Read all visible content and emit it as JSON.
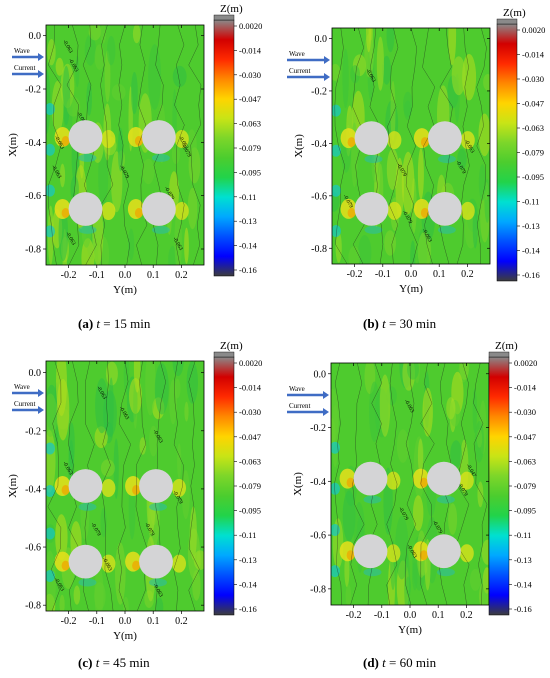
{
  "chart_data": [
    {
      "type": "heatmap",
      "panel": "a",
      "caption": {
        "label": "(a)",
        "var": "t",
        "eq": "= 15 min"
      },
      "xlabel": "Y(m)",
      "ylabel": "X(m)",
      "xlim": [
        -0.28,
        0.28
      ],
      "ylim": [
        -0.86,
        0.04
      ],
      "xticks": [
        "-0.2",
        "-0.1",
        "0.0",
        "0.1",
        "0.2"
      ],
      "yticks": [
        "0.0",
        "-0.2",
        "-0.4",
        "-0.6",
        "-0.8"
      ],
      "arrows": [
        "Wave",
        "Current"
      ],
      "piles": [
        {
          "y": -0.14,
          "x": -0.38
        },
        {
          "y": 0.12,
          "x": -0.38
        },
        {
          "y": -0.14,
          "x": -0.65
        },
        {
          "y": 0.12,
          "x": -0.65
        }
      ],
      "pile_radius": 0.06,
      "contour_labels": [
        {
          "text": "-0.063",
          "y": -0.22,
          "x": -0.02
        },
        {
          "text": "-0.063",
          "y": -0.2,
          "x": -0.09
        },
        {
          "text": "-0.063",
          "y": -0.17,
          "x": -0.29
        },
        {
          "text": "-0.063",
          "y": -0.25,
          "x": -0.38
        },
        {
          "text": "-0.063",
          "y": 0.19,
          "x": -0.38
        },
        {
          "text": "-0.079",
          "y": -0.02,
          "x": -0.49
        },
        {
          "text": "-0.079",
          "y": 0.2,
          "x": -0.41
        },
        {
          "text": "-0.063",
          "y": -0.26,
          "x": -0.49
        },
        {
          "text": "-0.079",
          "y": 0.14,
          "x": -0.57
        },
        {
          "text": "-0.063",
          "y": -0.21,
          "x": -0.74
        },
        {
          "text": "-0.063",
          "y": 0.17,
          "x": -0.76
        }
      ],
      "colorbar": {
        "title": "Z(m)",
        "ticks": [
          "0.0020",
          "-0.014",
          "-0.030",
          "-0.047",
          "-0.063",
          "-0.079",
          "-0.095",
          "-0.11",
          "-0.13",
          "-0.14",
          "-0.16"
        ]
      }
    },
    {
      "type": "heatmap",
      "panel": "b",
      "caption": {
        "label": "(b)",
        "var": "t",
        "eq": "= 30 min"
      },
      "xlabel": "Y(m)",
      "ylabel": "X(m)",
      "xlim": [
        -0.28,
        0.28
      ],
      "ylim": [
        -0.86,
        0.04
      ],
      "xticks": [
        "-0.2",
        "-0.1",
        "0.0",
        "0.1",
        "0.2"
      ],
      "yticks": [
        "0.0",
        "-0.2",
        "-0.4",
        "-0.6",
        "-0.8"
      ],
      "arrows": [
        "Wave",
        "Current"
      ],
      "piles": [
        {
          "y": -0.14,
          "x": -0.38
        },
        {
          "y": 0.12,
          "x": -0.38
        },
        {
          "y": -0.14,
          "x": -0.65
        },
        {
          "y": 0.12,
          "x": -0.65
        }
      ],
      "pile_radius": 0.06,
      "contour_labels": [
        {
          "text": "-0.063",
          "y": -0.16,
          "x": -0.12
        },
        {
          "text": "-0.063",
          "y": 0.19,
          "x": -0.39
        },
        {
          "text": "-0.079",
          "y": -0.05,
          "x": -0.48
        },
        {
          "text": "-0.079",
          "y": 0.16,
          "x": -0.47
        },
        {
          "text": "-0.079",
          "y": -0.24,
          "x": -0.6
        },
        {
          "text": "-0.079",
          "y": -0.03,
          "x": -0.66
        },
        {
          "text": "-0.063",
          "y": 0.04,
          "x": -0.73
        }
      ],
      "colorbar": {
        "title": "Z(m)",
        "ticks": [
          "0.0020",
          "-0.014",
          "-0.030",
          "-0.047",
          "-0.063",
          "-0.079",
          "-0.095",
          "-0.11",
          "-0.13",
          "-0.14",
          "-0.16"
        ]
      }
    },
    {
      "type": "heatmap",
      "panel": "c",
      "caption": {
        "label": "(c)",
        "var": "t",
        "eq": "= 45 min"
      },
      "xlabel": "Y(m)",
      "ylabel": "X(m)",
      "xlim": [
        -0.28,
        0.28
      ],
      "ylim": [
        -0.82,
        0.04
      ],
      "xticks": [
        "-0.2",
        "-0.1",
        "0.0",
        "0.1",
        "0.2"
      ],
      "yticks": [
        "0.0",
        "-0.2",
        "-0.4",
        "-0.6",
        "-0.8"
      ],
      "arrows": [
        "Wave",
        "Current"
      ],
      "piles": [
        {
          "y": -0.14,
          "x": -0.39
        },
        {
          "y": 0.11,
          "x": -0.39
        },
        {
          "y": -0.14,
          "x": -0.65
        },
        {
          "y": 0.11,
          "x": -0.65
        }
      ],
      "pile_radius": 0.06,
      "contour_labels": [
        {
          "text": "-0.063",
          "y": -0.1,
          "x": -0.05
        },
        {
          "text": "-0.063",
          "y": -0.02,
          "x": -0.12
        },
        {
          "text": "-0.063",
          "y": 0.1,
          "x": -0.2
        },
        {
          "text": "-0.063",
          "y": -0.22,
          "x": -0.31
        },
        {
          "text": "-0.079",
          "y": 0.17,
          "x": -0.41
        },
        {
          "text": "-0.079",
          "y": -0.12,
          "x": -0.52
        },
        {
          "text": "-0.079",
          "y": 0.07,
          "x": -0.52
        },
        {
          "text": "-0.063",
          "y": -0.08,
          "x": -0.64
        },
        {
          "text": "-0.063",
          "y": -0.25,
          "x": -0.71
        },
        {
          "text": "-0.063",
          "y": 0.1,
          "x": -0.73
        }
      ],
      "colorbar": {
        "title": "Z(m)",
        "ticks": [
          "0.0020",
          "-0.014",
          "-0.030",
          "-0.047",
          "-0.063",
          "-0.079",
          "-0.095",
          "-0.11",
          "-0.13",
          "-0.14",
          "-0.16"
        ]
      }
    },
    {
      "type": "heatmap",
      "panel": "d",
      "caption": {
        "label": "(d)",
        "var": "t",
        "eq": "= 60 min"
      },
      "xlabel": "Y(m)",
      "ylabel": "X(m)",
      "xlim": [
        -0.28,
        0.28
      ],
      "ylim": [
        -0.86,
        0.04
      ],
      "xticks": [
        "-0.2",
        "-0.1",
        "0.0",
        "0.1",
        "0.2"
      ],
      "yticks": [
        "0.0",
        "-0.2",
        "-0.4",
        "-0.6",
        "-0.8"
      ],
      "arrows": [
        "Wave",
        "Current"
      ],
      "piles": [
        {
          "y": -0.14,
          "x": -0.39
        },
        {
          "y": 0.12,
          "x": -0.39
        },
        {
          "y": -0.14,
          "x": -0.66
        },
        {
          "y": 0.12,
          "x": -0.66
        }
      ],
      "pile_radius": 0.06,
      "contour_labels": [
        {
          "text": "-0.063",
          "y": -0.02,
          "x": -0.1
        },
        {
          "text": "-0.047",
          "y": 0.2,
          "x": -0.34
        },
        {
          "text": "-0.079",
          "y": 0.17,
          "x": -0.41
        },
        {
          "text": "-0.079",
          "y": -0.04,
          "x": -0.5
        },
        {
          "text": "-0.079",
          "y": 0.08,
          "x": -0.55
        },
        {
          "text": "-0.063",
          "y": -0.01,
          "x": -0.64
        }
      ],
      "colorbar": {
        "title": "Z(m)",
        "ticks": [
          "0.0020",
          "-0.014",
          "-0.030",
          "-0.047",
          "-0.063",
          "-0.079",
          "-0.095",
          "-0.11",
          "-0.13",
          "-0.14",
          "-0.16"
        ]
      }
    }
  ],
  "colors": {
    "colormap": [
      "#3d3d3d",
      "#0000ff",
      "#0050ff",
      "#00a8ff",
      "#00e0d0",
      "#22d34a",
      "#4ccd2e",
      "#7cd62a",
      "#c8e416",
      "#ffd400",
      "#ff8800",
      "#ff2a00",
      "#d20000",
      "#8a8a8a"
    ],
    "field_base": "#4ecb2e",
    "pile": "#d4d4d6",
    "arrow": "#3f6cc4"
  }
}
